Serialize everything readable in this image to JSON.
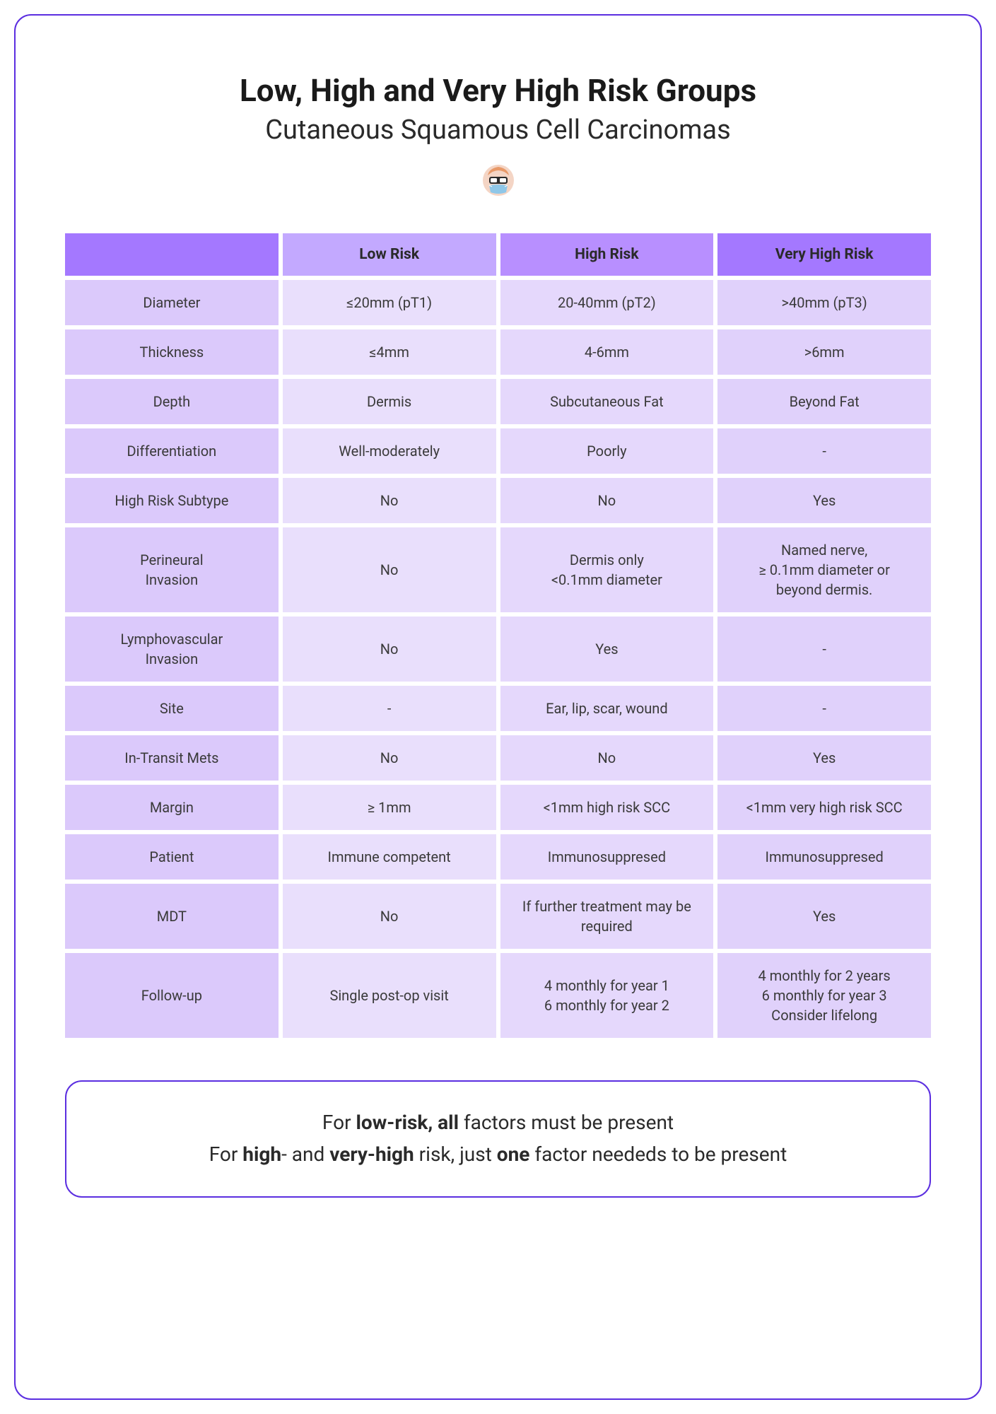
{
  "title": "Low, High and Very High Risk Groups",
  "subtitle": "Cutaneous Squamous Cell Carcinomas",
  "columns": [
    "Low Risk",
    "High Risk",
    "Very High Risk"
  ],
  "rows": [
    {
      "label": "Diameter",
      "low": "≤20mm (pT1)",
      "high": "20-40mm (pT2)",
      "vhigh": ">40mm (pT3)"
    },
    {
      "label": "Thickness",
      "low": "≤4mm",
      "high": "4-6mm",
      "vhigh": ">6mm"
    },
    {
      "label": "Depth",
      "low": "Dermis",
      "high": "Subcutaneous Fat",
      "vhigh": "Beyond Fat"
    },
    {
      "label": "Differentiation",
      "low": "Well-moderately",
      "high": "Poorly",
      "vhigh": "-"
    },
    {
      "label": "High Risk Subtype",
      "low": "No",
      "high": "No",
      "vhigh": "Yes"
    },
    {
      "label": "Perineural\nInvasion",
      "low": "No",
      "high": "Dermis only\n<0.1mm diameter",
      "vhigh": "Named nerve,\n≥ 0.1mm diameter or\nbeyond dermis."
    },
    {
      "label": "Lymphovascular\nInvasion",
      "low": "No",
      "high": "Yes",
      "vhigh": "-"
    },
    {
      "label": "Site",
      "low": "-",
      "high": "Ear, lip, scar, wound",
      "vhigh": "-"
    },
    {
      "label": "In-Transit Mets",
      "low": "No",
      "high": "No",
      "vhigh": "Yes"
    },
    {
      "label": "Margin",
      "low": "≥ 1mm",
      "high": "<1mm high risk SCC",
      "vhigh": "<1mm very high risk SCC"
    },
    {
      "label": "Patient",
      "low": "Immune competent",
      "high": "Immunosuppresed",
      "vhigh": "Immunosuppresed"
    },
    {
      "label": "MDT",
      "low": "No",
      "high": "If further treatment may be\nrequired",
      "vhigh": "Yes"
    },
    {
      "label": "Follow-up",
      "low": "Single post-op visit",
      "high": "4 monthly for year 1\n6 monthly for year 2",
      "vhigh": "4 monthly for 2 years\n6 monthly for year 3\nConsider lifelong"
    }
  ],
  "note": {
    "line1_pre": "For ",
    "line1_b1": "low-risk, all",
    "line1_post": " factors must be present",
    "line2_pre": "For ",
    "line2_b1": "high",
    "line2_mid1": "- and ",
    "line2_b2": "very-high",
    "line2_mid2": " risk, just ",
    "line2_b3": "one",
    "line2_post": " factor neededs to be present"
  },
  "colors": {
    "border": "#5b2ee0",
    "header_empty": "#a478ff",
    "header_low": "#c3a9ff",
    "header_high": "#b88fff",
    "header_vhigh": "#a478ff",
    "cell_label": "#dbc9fb",
    "cell_low": "#e9dffc",
    "cell_high": "#e5d8fc",
    "cell_vhigh": "#e0d1fb",
    "background": "#ffffff",
    "text_title": "#1a1a1a",
    "text_body": "#3a3a3a"
  },
  "typography": {
    "title_size": 44,
    "subtitle_size": 38,
    "header_size": 21,
    "cell_size": 20,
    "note_size": 28
  }
}
